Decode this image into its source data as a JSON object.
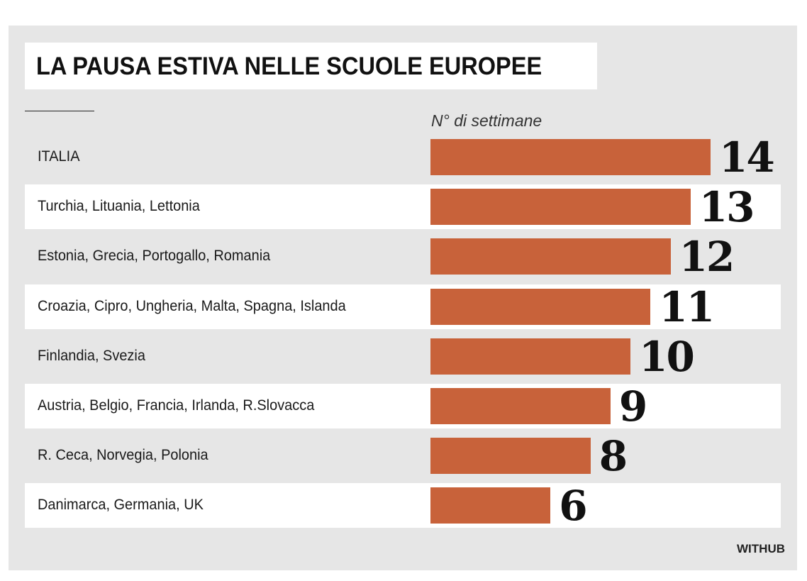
{
  "chart_data": {
    "type": "bar",
    "orientation": "horizontal",
    "title": "LA PAUSA ESTIVA NELLE SCUOLE EUROPEE",
    "unit_label": "N° di settimane",
    "categories": [
      "ITALIA",
      "Turchia, Lituania, Lettonia",
      "Estonia, Grecia, Portogallo, Romania",
      "Croazia, Cipro, Ungheria, Malta, Spagna, Islanda",
      "Finlandia, Svezia",
      "Austria, Belgio, Francia, Irlanda, R.Slovacca",
      "R. Ceca, Norvegia, Polonia",
      "Danimarca, Germania, UK"
    ],
    "values": [
      14,
      13,
      12,
      11,
      10,
      9,
      8,
      6
    ],
    "value_labels": [
      "14",
      "13",
      "12",
      "11",
      "10",
      "9",
      "8",
      "6"
    ],
    "xlim": [
      0,
      14
    ],
    "grid": false,
    "bar_color": "#c8623a",
    "source": "WITHUB"
  }
}
